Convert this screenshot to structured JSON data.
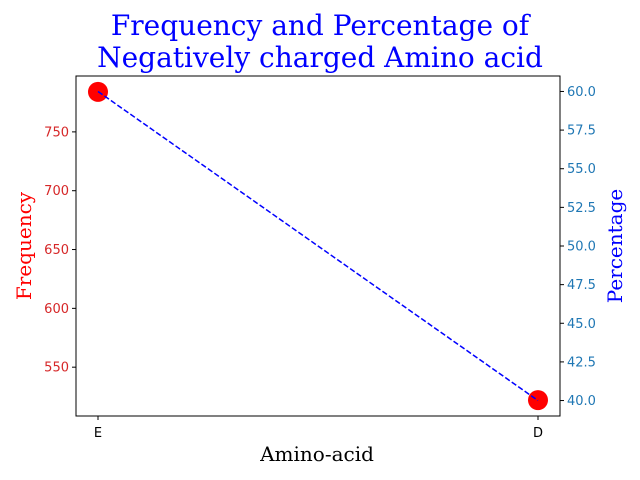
{
  "chart_data": {
    "type": "line",
    "title_lines": [
      "Frequency and Percentage of",
      "Negatively charged Amino acid"
    ],
    "xlabel": "Amino-acid",
    "ylabel_left": "Frequency",
    "ylabel_right": "Percentage",
    "categories": [
      "E",
      "D"
    ],
    "series": [
      {
        "axis": "left",
        "style": "markers",
        "color": "#ff0000",
        "values": [
          784,
          522
        ]
      },
      {
        "axis": "right",
        "style": "dashed-line",
        "color": "#0000ff",
        "values": [
          60.0,
          40.0
        ]
      }
    ],
    "ylim_left": [
      508.5,
      797.5
    ],
    "ylim_right": [
      39.0,
      61.0
    ],
    "left_ticks": [
      "550",
      "600",
      "650",
      "700",
      "750"
    ],
    "right_ticks": [
      "40.0",
      "42.5",
      "45.0",
      "47.5",
      "50.0",
      "52.5",
      "55.0",
      "57.5",
      "60.0"
    ],
    "colors": {
      "left_axis": "#d62728",
      "left_label": "#ff0000",
      "right_axis": "#1f77b4",
      "right_label": "#0000ff",
      "title": "#0000ff",
      "frame": "#000000"
    },
    "grid": false,
    "legend": "none"
  }
}
